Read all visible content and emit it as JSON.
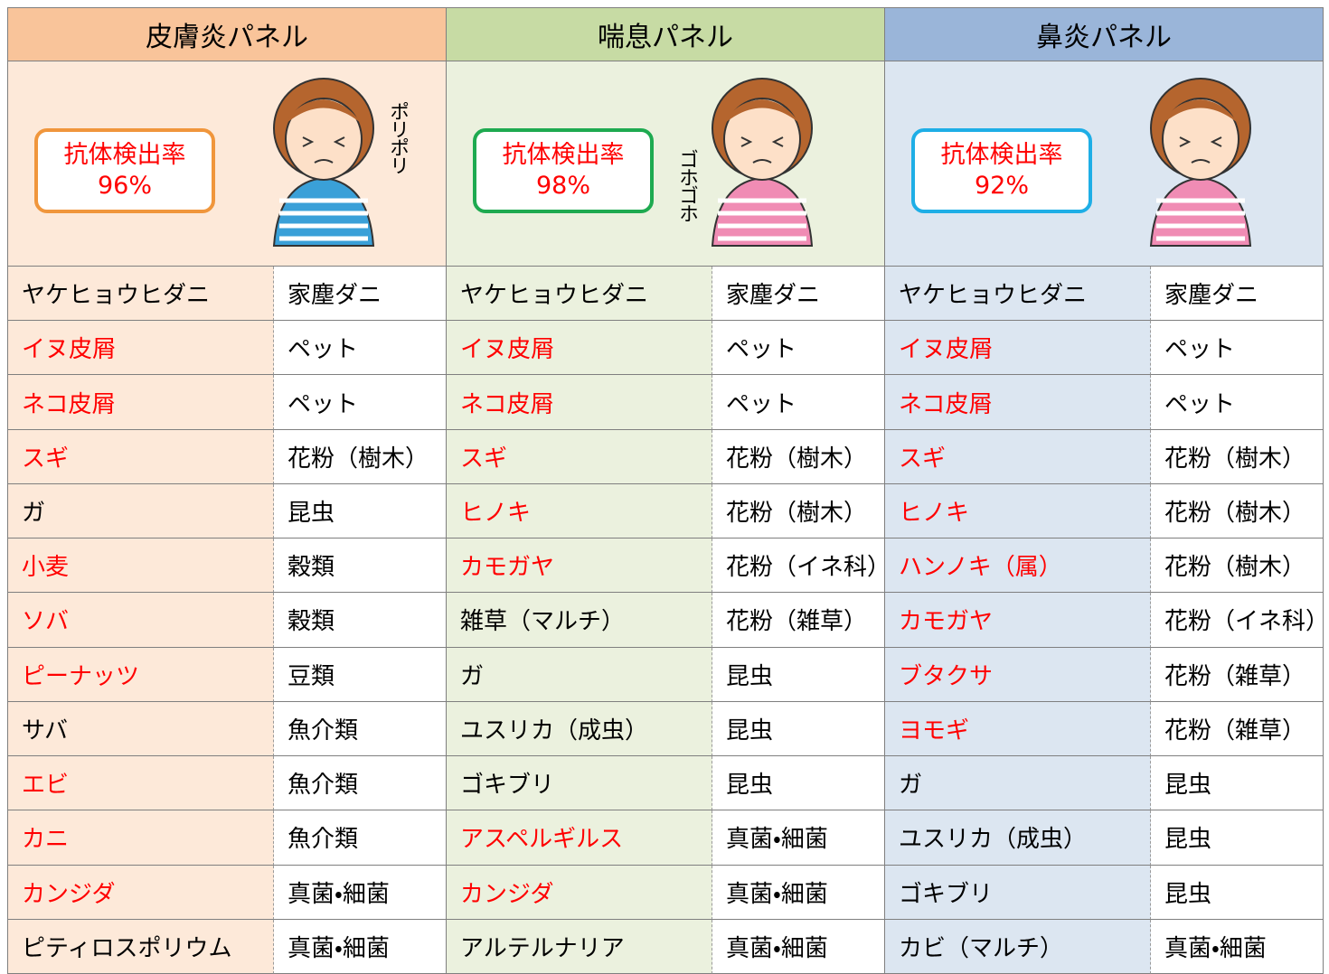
{
  "panels": [
    {
      "title": "皮膚炎パネル",
      "rate_label": "抗体検出率",
      "rate": "96%",
      "sound": "ポリポリ",
      "header_color": "#f9c49a",
      "body_color": "#fde9d9",
      "box_color": "#f0963c",
      "rows": [
        {
          "name": "ヤケヒョウヒダニ",
          "category": "家塵ダニ",
          "highlight": false
        },
        {
          "name": "イヌ皮屑",
          "category": "ペット",
          "highlight": true
        },
        {
          "name": "ネコ皮屑",
          "category": "ペット",
          "highlight": true
        },
        {
          "name": "スギ",
          "category": "花粉（樹木）",
          "highlight": true
        },
        {
          "name": "ガ",
          "category": "昆虫",
          "highlight": false
        },
        {
          "name": "小麦",
          "category": "穀類",
          "highlight": true
        },
        {
          "name": "ソバ",
          "category": "穀類",
          "highlight": true
        },
        {
          "name": "ピーナッツ",
          "category": "豆類",
          "highlight": true
        },
        {
          "name": "サバ",
          "category": "魚介類",
          "highlight": false
        },
        {
          "name": "エビ",
          "category": "魚介類",
          "highlight": true
        },
        {
          "name": "カニ",
          "category": "魚介類",
          "highlight": true
        },
        {
          "name": "カンジダ",
          "category": "真菌・細菌",
          "highlight": true
        },
        {
          "name": "ピティロスポリウム",
          "category": "真菌・細菌",
          "highlight": false
        }
      ]
    },
    {
      "title": "喘息パネル",
      "rate_label": "抗体検出率",
      "rate": "98%",
      "sound": "ゴホゴホ",
      "header_color": "#c7dba4",
      "body_color": "#ebf1de",
      "box_color": "#1eaa50",
      "rows": [
        {
          "name": "ヤケヒョウヒダニ",
          "category": "家塵ダニ",
          "highlight": false
        },
        {
          "name": "イヌ皮屑",
          "category": "ペット",
          "highlight": true
        },
        {
          "name": "ネコ皮屑",
          "category": "ペット",
          "highlight": true
        },
        {
          "name": "スギ",
          "category": "花粉（樹木）",
          "highlight": true
        },
        {
          "name": "ヒノキ",
          "category": "花粉（樹木）",
          "highlight": true
        },
        {
          "name": "カモガヤ",
          "category": "花粉（イネ科）",
          "highlight": true
        },
        {
          "name": "雑草（マルチ）",
          "category": "花粉（雑草）",
          "highlight": false
        },
        {
          "name": "ガ",
          "category": "昆虫",
          "highlight": false
        },
        {
          "name": "ユスリカ（成虫）",
          "category": "昆虫",
          "highlight": false
        },
        {
          "name": "ゴキブリ",
          "category": "昆虫",
          "highlight": false
        },
        {
          "name": "アスペルギルス",
          "category": "真菌・細菌",
          "highlight": true
        },
        {
          "name": "カンジダ",
          "category": "真菌・細菌",
          "highlight": true
        },
        {
          "name": "アルテルナリア",
          "category": "真菌・細菌",
          "highlight": false
        }
      ]
    },
    {
      "title": "鼻炎パネル",
      "rate_label": "抗体検出率",
      "rate": "92%",
      "header_color": "#9ab5d9",
      "body_color": "#dce6f1",
      "box_color": "#1eaee6",
      "rows": [
        {
          "name": "ヤケヒョウヒダニ",
          "category": "家塵ダニ",
          "highlight": false
        },
        {
          "name": "イヌ皮屑",
          "category": "ペット",
          "highlight": true
        },
        {
          "name": "ネコ皮屑",
          "category": "ペット",
          "highlight": true
        },
        {
          "name": "スギ",
          "category": "花粉（樹木）",
          "highlight": true
        },
        {
          "name": "ヒノキ",
          "category": "花粉（樹木）",
          "highlight": true
        },
        {
          "name": "ハンノキ（属）",
          "category": "花粉（樹木）",
          "highlight": true
        },
        {
          "name": "カモガヤ",
          "category": "花粉（イネ科）",
          "highlight": true
        },
        {
          "name": "ブタクサ",
          "category": "花粉（雑草）",
          "highlight": true
        },
        {
          "name": "ヨモギ",
          "category": "花粉（雑草）",
          "highlight": true
        },
        {
          "name": "ガ",
          "category": "昆虫",
          "highlight": false
        },
        {
          "name": "ユスリカ（成虫）",
          "category": "昆虫",
          "highlight": false
        },
        {
          "name": "ゴキブリ",
          "category": "昆虫",
          "highlight": false
        },
        {
          "name": "カビ（マルチ）",
          "category": "真菌・細菌",
          "highlight": false
        }
      ]
    }
  ]
}
